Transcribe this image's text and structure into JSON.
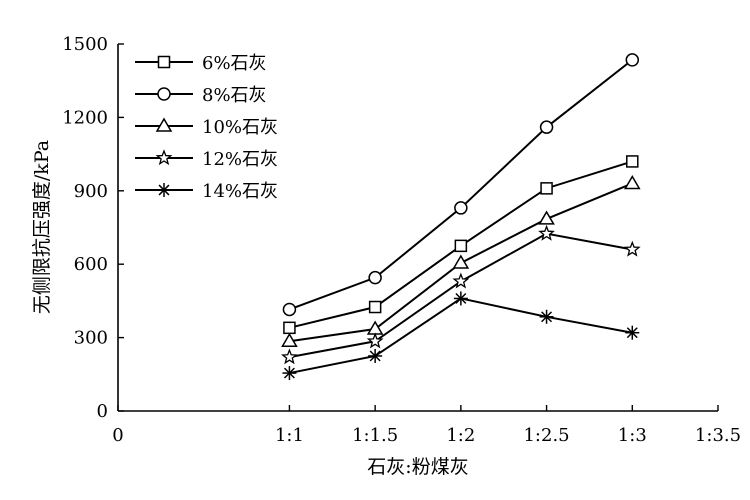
{
  "chart_data": {
    "type": "line",
    "xlabel": "石灰:粉煤灰",
    "ylabel": "无侧限抗压强度/kPa",
    "xlim": [
      0,
      3.5
    ],
    "ylim": [
      0,
      1500
    ],
    "x_ticks": [
      {
        "value": 0,
        "label": "0"
      },
      {
        "value": 1,
        "label": "1:1"
      },
      {
        "value": 1.5,
        "label": "1:1.5"
      },
      {
        "value": 2,
        "label": "1:2"
      },
      {
        "value": 2.5,
        "label": "1:2.5"
      },
      {
        "value": 3,
        "label": "1:3"
      },
      {
        "value": 3.5,
        "label": "1:3.5"
      }
    ],
    "y_ticks": [
      0,
      300,
      600,
      900,
      1200,
      1500
    ],
    "x": [
      1,
      1.5,
      2,
      2.5,
      3
    ],
    "legend_position": "top-left",
    "grid": false,
    "series": [
      {
        "name": "6%石灰",
        "marker": "square",
        "values": [
          340,
          425,
          675,
          910,
          1020
        ]
      },
      {
        "name": "8%石灰",
        "marker": "circle",
        "values": [
          415,
          545,
          830,
          1160,
          1435
        ]
      },
      {
        "name": "10%石灰",
        "marker": "triangle",
        "values": [
          285,
          335,
          605,
          785,
          930
        ]
      },
      {
        "name": "12%石灰",
        "marker": "star",
        "values": [
          220,
          285,
          530,
          725,
          660
        ]
      },
      {
        "name": "14%石灰",
        "marker": "asterisk",
        "values": [
          155,
          225,
          460,
          385,
          320
        ]
      }
    ]
  }
}
